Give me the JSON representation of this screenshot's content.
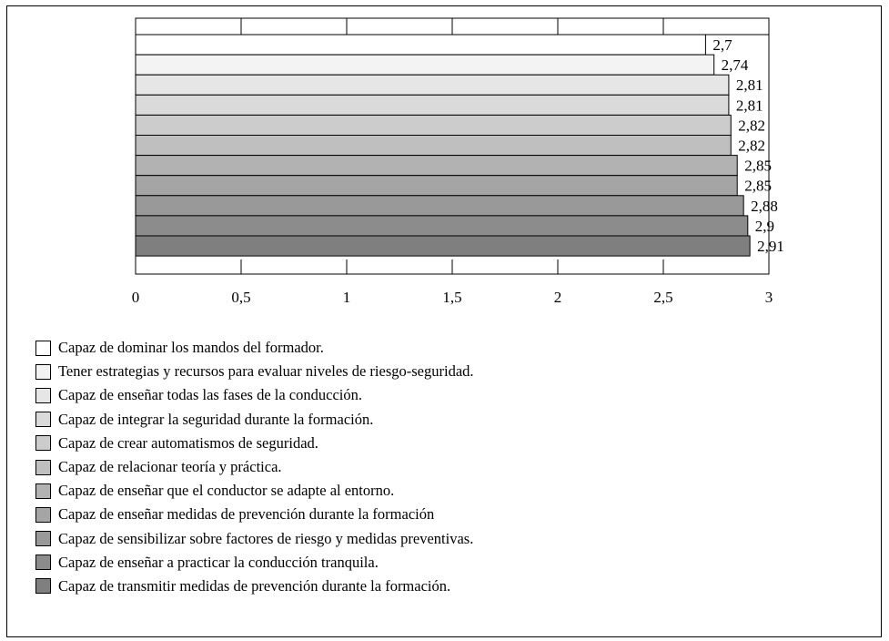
{
  "chart_data": {
    "type": "bar",
    "orientation": "horizontal",
    "title": "",
    "xlabel": "",
    "ylabel": "",
    "xlim": [
      0,
      3
    ],
    "x_ticks": [
      "0",
      "0,5",
      "1",
      "1,5",
      "2",
      "2,5",
      "3"
    ],
    "grid": false,
    "legend_position": "bottom",
    "series": [
      {
        "name": "Capaz de dominar los mandos del formador.",
        "value": 2.7,
        "label": "2,7",
        "color": "#ffffff"
      },
      {
        "name": "Tener estrategias y recursos para evaluar niveles de riesgo-seguridad.",
        "value": 2.74,
        "label": "2,74",
        "color": "#f3f3f3"
      },
      {
        "name": "Capaz de enseñar todas las fases de la conducción.",
        "value": 2.81,
        "label": "2,81",
        "color": "#e6e6e6"
      },
      {
        "name": "Capaz de integrar la seguridad durante la formación.",
        "value": 2.81,
        "label": "2,81",
        "color": "#dadada"
      },
      {
        "name": "Capaz de crear automatismos de seguridad.",
        "value": 2.82,
        "label": "2,82",
        "color": "#cccccc"
      },
      {
        "name": "Capaz de relacionar teoría y práctica.",
        "value": 2.82,
        "label": "2,82",
        "color": "#bfbfbf"
      },
      {
        "name": "Capaz de enseñar que el conductor se adapte al entorno.",
        "value": 2.85,
        "label": "2,85",
        "color": "#b2b2b2"
      },
      {
        "name": "Capaz de enseñar medidas de prevención durante la formación",
        "value": 2.85,
        "label": "2,85",
        "color": "#a5a5a5"
      },
      {
        "name": "Capaz de sensibilizar sobre factores de riesgo y medidas preventivas.",
        "value": 2.88,
        "label": "2,88",
        "color": "#999999"
      },
      {
        "name": "Capaz de enseñar a practicar la conducción tranquila.",
        "value": 2.9,
        "label": "2,9",
        "color": "#8c8c8c"
      },
      {
        "name": "Capaz de transmitir medidas de prevención durante la formación.",
        "value": 2.91,
        "label": "2,91",
        "color": "#7f7f7f"
      }
    ]
  }
}
